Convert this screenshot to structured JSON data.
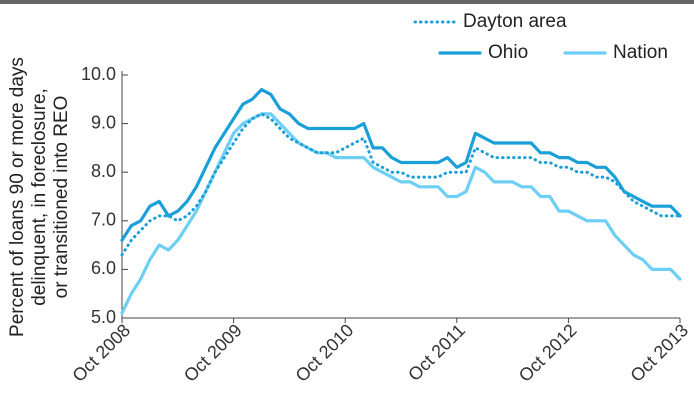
{
  "chart_data": {
    "type": "line",
    "y_label": [
      "Percent of loans 90 or more days",
      "delinquent, in foreclosure,",
      "or transitioned into REO"
    ],
    "categories": [
      "Oct 2008",
      null,
      null,
      null,
      null,
      null,
      null,
      null,
      null,
      null,
      null,
      null,
      "Oct 2009",
      null,
      null,
      null,
      null,
      null,
      null,
      null,
      null,
      null,
      null,
      null,
      "Oct 2010",
      null,
      null,
      null,
      null,
      null,
      null,
      null,
      null,
      null,
      null,
      null,
      "Oct 2011",
      null,
      null,
      null,
      null,
      null,
      null,
      null,
      null,
      null,
      null,
      null,
      "Oct 2012",
      null,
      null,
      null,
      null,
      null,
      null,
      null,
      null,
      null,
      null,
      null,
      "Oct 2013"
    ],
    "ylim": [
      5,
      10
    ],
    "yticks": [
      {
        "value": 5,
        "label": "5.0"
      },
      {
        "value": 6,
        "label": "6.0"
      },
      {
        "value": 7,
        "label": "7.0"
      },
      {
        "value": 8,
        "label": "8.0"
      },
      {
        "value": 9,
        "label": "9.0"
      },
      {
        "value": 10,
        "label": "10.0"
      }
    ],
    "grid": false,
    "series": [
      {
        "name": "Dayton area",
        "color": "#1a9fd9",
        "dashed": true,
        "values": [
          6.3,
          6.6,
          6.8,
          7.0,
          7.1,
          7.1,
          7.0,
          7.1,
          7.3,
          7.6,
          8.0,
          8.3,
          8.6,
          8.9,
          9.1,
          9.2,
          9.1,
          8.9,
          8.7,
          8.6,
          8.5,
          8.4,
          8.4,
          8.4,
          8.5,
          8.6,
          8.7,
          8.2,
          8.1,
          8.0,
          8.0,
          7.9,
          7.9,
          7.9,
          7.9,
          8.0,
          8.0,
          8.0,
          8.5,
          8.4,
          8.3,
          8.3,
          8.3,
          8.3,
          8.3,
          8.2,
          8.2,
          8.1,
          8.1,
          8.0,
          8.0,
          7.9,
          7.9,
          7.8,
          7.6,
          7.4,
          7.3,
          7.2,
          7.1,
          7.1,
          7.1
        ]
      },
      {
        "name": "Ohio",
        "color": "#1a9fd9",
        "dashed": false,
        "values": [
          6.6,
          6.9,
          7.0,
          7.3,
          7.4,
          7.1,
          7.2,
          7.4,
          7.7,
          8.1,
          8.5,
          8.8,
          9.1,
          9.4,
          9.5,
          9.7,
          9.6,
          9.3,
          9.2,
          9.0,
          8.9,
          8.9,
          8.9,
          8.9,
          8.9,
          8.9,
          9.0,
          8.5,
          8.5,
          8.3,
          8.2,
          8.2,
          8.2,
          8.2,
          8.2,
          8.3,
          8.1,
          8.2,
          8.8,
          8.7,
          8.6,
          8.6,
          8.6,
          8.6,
          8.6,
          8.4,
          8.4,
          8.3,
          8.3,
          8.2,
          8.2,
          8.1,
          8.1,
          7.9,
          7.6,
          7.5,
          7.4,
          7.3,
          7.3,
          7.3,
          7.1
        ]
      },
      {
        "name": "Nation",
        "color": "#6dcff6",
        "dashed": false,
        "values": [
          5.1,
          5.5,
          5.8,
          6.2,
          6.5,
          6.4,
          6.6,
          6.9,
          7.2,
          7.6,
          8.0,
          8.4,
          8.8,
          9.0,
          9.1,
          9.2,
          9.2,
          9.0,
          8.8,
          8.6,
          8.5,
          8.4,
          8.4,
          8.3,
          8.3,
          8.3,
          8.3,
          8.1,
          8.0,
          7.9,
          7.8,
          7.8,
          7.7,
          7.7,
          7.7,
          7.5,
          7.5,
          7.6,
          8.1,
          8.0,
          7.8,
          7.8,
          7.8,
          7.7,
          7.7,
          7.5,
          7.5,
          7.2,
          7.2,
          7.1,
          7.0,
          7.0,
          7.0,
          6.7,
          6.5,
          6.3,
          6.2,
          6.0,
          6.0,
          6.0,
          5.8
        ]
      }
    ]
  }
}
